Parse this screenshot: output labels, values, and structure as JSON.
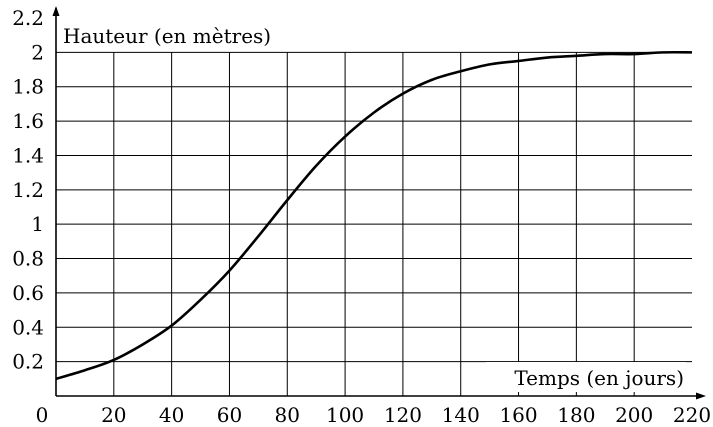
{
  "chart_data": {
    "type": "line",
    "xlabel": "Temps (en jours)",
    "ylabel": "Hauteur (en mètres)",
    "origin_label": "0",
    "xlim": [
      0,
      220
    ],
    "ylim": [
      0,
      2.2
    ],
    "xticks": [
      20,
      40,
      60,
      80,
      100,
      120,
      140,
      160,
      180,
      200,
      220
    ],
    "yticks": [
      0.2,
      0.4,
      0.6,
      0.8,
      1,
      1.2,
      1.4,
      1.6,
      1.8,
      2,
      2.2
    ],
    "grid": true,
    "series": [
      {
        "x": [
          0,
          10,
          20,
          30,
          40,
          50,
          60,
          70,
          80,
          90,
          100,
          110,
          120,
          130,
          140,
          150,
          160,
          170,
          180,
          190,
          200,
          210,
          220
        ],
        "y": [
          0.1,
          0.15,
          0.21,
          0.3,
          0.41,
          0.56,
          0.73,
          0.93,
          1.14,
          1.34,
          1.51,
          1.65,
          1.76,
          1.84,
          1.89,
          1.93,
          1.95,
          1.97,
          1.98,
          1.99,
          1.99,
          2.0,
          2.0
        ]
      }
    ]
  }
}
